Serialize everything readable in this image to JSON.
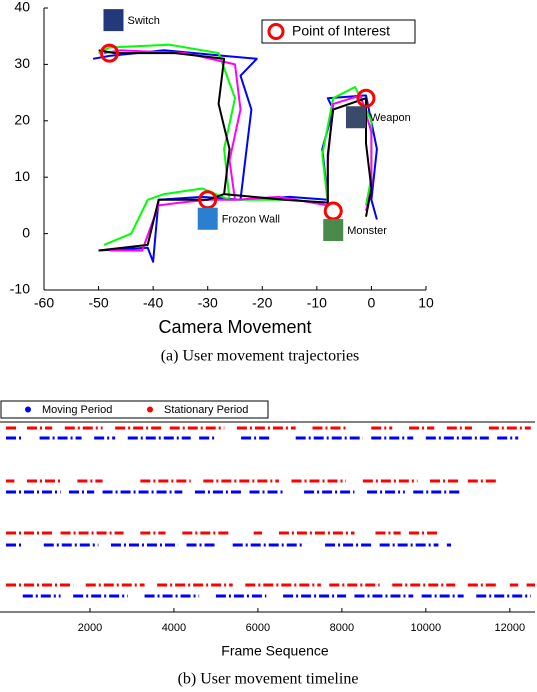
{
  "chart_data": [
    {
      "type": "trajectory",
      "xlabel": "Camera Movement",
      "caption": "(a) User movement trajectories",
      "xlim": [
        -60,
        10
      ],
      "xticks": [
        -60,
        -50,
        -40,
        -30,
        -20,
        -10,
        0,
        10
      ],
      "ylim": [
        -10,
        40
      ],
      "yticks": [
        -10,
        0,
        10,
        20,
        30,
        40
      ],
      "series": [
        {
          "color": "#0000ff",
          "x": [
            -50,
            -41,
            -40,
            -39,
            -31,
            -24,
            -23,
            -22,
            -24,
            -21,
            -27,
            -38,
            -48,
            -51,
            null,
            -24,
            -15,
            -8,
            -9,
            -7,
            -8,
            -1,
            1,
            0,
            1
          ],
          "y": [
            -3,
            -2.5,
            -5,
            6,
            6.5,
            6,
            14,
            22,
            28,
            31,
            31.5,
            32.5,
            31.5,
            31,
            null,
            6,
            6.5,
            6,
            15,
            22,
            24,
            24.5,
            15,
            6,
            2.5
          ]
        },
        {
          "color": "#00ff00",
          "x": [
            -49,
            -44,
            -41,
            -38,
            -31,
            -26,
            -27,
            -25,
            -28,
            -37,
            -48,
            -50,
            null,
            -26,
            -16,
            -8,
            -9,
            -7,
            -3,
            0,
            0,
            -1
          ],
          "y": [
            -2,
            0,
            6,
            7,
            8,
            6,
            15,
            24,
            32,
            33.5,
            33,
            32,
            null,
            6,
            6,
            5.5,
            14,
            24,
            26,
            20,
            10,
            5
          ]
        },
        {
          "color": "#ff00ff",
          "x": [
            -48,
            -42,
            -39,
            -35,
            -30,
            -25,
            -26,
            -24,
            -25,
            -34,
            -46,
            -49,
            null,
            -25,
            -17,
            -8,
            -8,
            -7,
            -2,
            0,
            0,
            -1
          ],
          "y": [
            -3,
            -3,
            5,
            5.5,
            6,
            6,
            13,
            22,
            30,
            32,
            32.5,
            32,
            null,
            6,
            6.5,
            5,
            13,
            23,
            24.5,
            18,
            8,
            4
          ]
        },
        {
          "color": "#000000",
          "x": [
            -50,
            -41,
            -39,
            -33,
            -30,
            -27,
            -26,
            -28,
            -27,
            -36,
            -47,
            -50,
            null,
            -27,
            -16,
            -8,
            -8,
            -7,
            -1,
            -1,
            0,
            -1
          ],
          "y": [
            -3,
            -2,
            6,
            6,
            6,
            7,
            15,
            23,
            31,
            32,
            32,
            32.5,
            null,
            7,
            6,
            5.5,
            14,
            22,
            24,
            16,
            8,
            3
          ]
        }
      ],
      "markers": {
        "name": "Point of Interest",
        "color": "#ff0000",
        "x": [
          -48,
          -30,
          -7,
          -1
        ],
        "y": [
          32,
          6,
          4,
          24
        ],
        "labels": [
          "Switch",
          "Frozon Wall",
          "Monster",
          "Weapon"
        ]
      }
    },
    {
      "type": "timeline",
      "xlabel": "Frame Sequence",
      "caption": "(b) User movement timeline",
      "xlim": [
        0,
        12600
      ],
      "xticks": [
        2000,
        4000,
        6000,
        8000,
        10000,
        12000
      ],
      "series": [
        {
          "name": "Moving Period",
          "color": "#0000ff",
          "rows": [
            [
              [
                0,
                400
              ],
              [
                800,
                1800
              ],
              [
                2100,
                2600
              ],
              [
                2900,
                4400
              ],
              [
                4600,
                5000
              ],
              [
                5600,
                6300
              ],
              [
                6900,
                8500
              ],
              [
                8700,
                9700
              ],
              [
                10000,
                11500
              ],
              [
                11700,
                12200
              ]
            ],
            [
              [
                0,
                1300
              ],
              [
                1500,
                2100
              ],
              [
                2300,
                4200
              ],
              [
                4500,
                5600
              ],
              [
                5800,
                6600
              ],
              [
                7100,
                8300
              ],
              [
                8600,
                9500
              ],
              [
                9700,
                10800
              ]
            ],
            [
              [
                0,
                400
              ],
              [
                900,
                2200
              ],
              [
                2500,
                4100
              ],
              [
                4300,
                5000
              ],
              [
                5400,
                7100
              ],
              [
                7600,
                8700
              ],
              [
                8900,
                10300
              ],
              [
                10500,
                10600
              ]
            ],
            [
              [
                400,
                1300
              ],
              [
                1600,
                2900
              ],
              [
                3300,
                4600
              ],
              [
                5000,
                6200
              ],
              [
                6600,
                8100
              ],
              [
                8300,
                9700
              ],
              [
                9900,
                10900
              ],
              [
                11200,
                12500
              ]
            ]
          ]
        },
        {
          "name": "Stationary Period",
          "color": "#ff0000",
          "rows": [
            [
              [
                0,
                300
              ],
              [
                500,
                1100
              ],
              [
                1400,
                2300
              ],
              [
                2600,
                3700
              ],
              [
                3900,
                5200
              ],
              [
                5500,
                6900
              ],
              [
                7300,
                8100
              ],
              [
                8700,
                9200
              ],
              [
                9600,
                10200
              ],
              [
                10500,
                11100
              ],
              [
                11500,
                12500
              ]
            ],
            [
              [
                0,
                200
              ],
              [
                500,
                1300
              ],
              [
                1700,
                2300
              ],
              [
                3200,
                4400
              ],
              [
                4700,
                6500
              ],
              [
                6800,
                8100
              ],
              [
                8500,
                9800
              ],
              [
                10100,
                10800
              ],
              [
                11000,
                11700
              ]
            ],
            [
              [
                0,
                1100
              ],
              [
                1300,
                2800
              ],
              [
                3200,
                3800
              ],
              [
                4200,
                5300
              ],
              [
                5900,
                6100
              ],
              [
                6500,
                8300
              ],
              [
                8800,
                9400
              ],
              [
                9600,
                10300
              ]
            ],
            [
              [
                0,
                1600
              ],
              [
                1900,
                3300
              ],
              [
                3600,
                5400
              ],
              [
                5700,
                7500
              ],
              [
                7700,
                8900
              ],
              [
                9200,
                10700
              ],
              [
                11000,
                11700
              ],
              [
                12000,
                12200
              ],
              [
                12400,
                12600
              ]
            ]
          ]
        }
      ]
    }
  ]
}
